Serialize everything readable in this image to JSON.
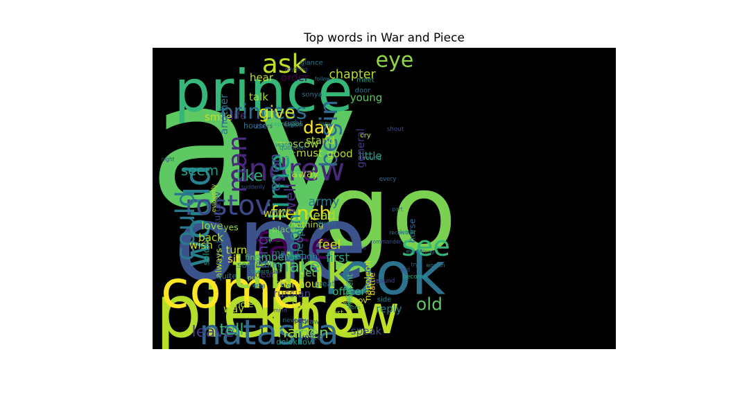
{
  "chart_data": {
    "type": "wordcloud",
    "title": "Top words in War and Piece",
    "background": "#000000",
    "words": [
      {
        "text": "say",
        "size": 1.0,
        "color": "#5ec962"
      },
      {
        "text": "go",
        "size": 0.62,
        "color": "#7ad151"
      },
      {
        "text": "one",
        "size": 0.6,
        "color": "#3b528b"
      },
      {
        "text": "pierre",
        "size": 0.42,
        "color": "#b5de2b"
      },
      {
        "text": "look",
        "size": 0.34,
        "color": "#2c728e"
      },
      {
        "text": "prince",
        "size": 0.33,
        "color": "#35b779"
      },
      {
        "text": "know",
        "size": 0.31,
        "color": "#bddf26"
      },
      {
        "text": "come",
        "size": 0.3,
        "color": "#fde725"
      },
      {
        "text": "think",
        "size": 0.28,
        "color": "#a0da39"
      },
      {
        "text": "take",
        "size": 0.22,
        "color": "#2a788e"
      },
      {
        "text": "face",
        "size": 0.21,
        "color": "#440154"
      },
      {
        "text": "natasha",
        "size": 0.2,
        "color": "#31688e"
      },
      {
        "text": "would",
        "size": 0.2,
        "color": "#26828e"
      },
      {
        "text": "count",
        "size": 0.18,
        "color": "#21918c"
      },
      {
        "text": "andrew",
        "size": 0.18,
        "color": "#482878"
      },
      {
        "text": "time",
        "size": 0.17,
        "color": "#1fa187"
      },
      {
        "text": "rostov",
        "size": 0.16,
        "color": "#3e4989"
      },
      {
        "text": "see",
        "size": 0.16,
        "color": "#35b779"
      },
      {
        "text": "could",
        "size": 0.15,
        "color": "#2a788e"
      },
      {
        "text": "man",
        "size": 0.15,
        "color": "#482878"
      },
      {
        "text": "ask",
        "size": 0.15,
        "color": "#c2df23"
      },
      {
        "text": "begin",
        "size": 0.14,
        "color": "#31688e"
      },
      {
        "text": "princess",
        "size": 0.12,
        "color": "#2c728e"
      },
      {
        "text": "eye",
        "size": 0.12,
        "color": "#90d743"
      },
      {
        "text": "french",
        "size": 0.11,
        "color": "#dde318"
      },
      {
        "text": "make",
        "size": 0.1,
        "color": "#4ac16d"
      },
      {
        "text": "room",
        "size": 0.1,
        "color": "#26828e"
      },
      {
        "text": "old",
        "size": 0.1,
        "color": "#5ec962"
      },
      {
        "text": "day",
        "size": 0.1,
        "color": "#fde725"
      },
      {
        "text": "give",
        "size": 0.1,
        "color": "#d2e21b"
      },
      {
        "text": "leave",
        "size": 0.09,
        "color": "#443983"
      },
      {
        "text": "hand",
        "size": 0.09,
        "color": "#9fda3a"
      },
      {
        "text": "men",
        "size": 0.09,
        "color": "#7ad151"
      },
      {
        "text": "tell",
        "size": 0.09,
        "color": "#35b779"
      },
      {
        "text": "well",
        "size": 0.09,
        "color": "#472d7b"
      },
      {
        "text": "even",
        "size": 0.09,
        "color": "#3b528b"
      },
      {
        "text": "long",
        "size": 0.09,
        "color": "#433e85"
      },
      {
        "text": "like",
        "size": 0.09,
        "color": "#2ab07f"
      },
      {
        "text": "seem",
        "size": 0.08,
        "color": "#1f9e89"
      },
      {
        "text": "chapter",
        "size": 0.07,
        "color": "#b8de29"
      },
      {
        "text": "army",
        "size": 0.07,
        "color": "#287c8e"
      },
      {
        "text": "head",
        "size": 0.07,
        "color": "#addc30"
      },
      {
        "text": "feel",
        "size": 0.07,
        "color": "#dde318"
      },
      {
        "text": "first",
        "size": 0.07,
        "color": "#22a884"
      },
      {
        "text": "little",
        "size": 0.06,
        "color": "#1f9a8a"
      },
      {
        "text": "young",
        "size": 0.06,
        "color": "#5ec962"
      },
      {
        "text": "good",
        "size": 0.06,
        "color": "#b5de2b"
      },
      {
        "text": "general",
        "size": 0.06,
        "color": "#443a83"
      },
      {
        "text": "word",
        "size": 0.06,
        "color": "#d8e219"
      },
      {
        "text": "people",
        "size": 0.06,
        "color": "#2d708e"
      },
      {
        "text": "officer",
        "size": 0.06,
        "color": "#35b779"
      },
      {
        "text": "way",
        "size": 0.06,
        "color": "#bddf26"
      },
      {
        "text": "speak",
        "size": 0.06,
        "color": "#3b528b"
      },
      {
        "text": "reply",
        "size": 0.06,
        "color": "#26828e"
      },
      {
        "text": "still",
        "size": 0.06,
        "color": "#9bd93c"
      },
      {
        "text": "without",
        "size": 0.06,
        "color": "#dde318"
      },
      {
        "text": "russian",
        "size": 0.06,
        "color": "#3e4a89"
      },
      {
        "text": "emperor",
        "size": 0.06,
        "color": "#35b779"
      },
      {
        "text": "understand",
        "size": 0.06,
        "color": "#482071"
      },
      {
        "text": "nicholas",
        "size": 0.06,
        "color": "#2e6e8e"
      },
      {
        "text": "turn",
        "size": 0.06,
        "color": "#c8e020"
      },
      {
        "text": "sit",
        "size": 0.06,
        "color": "#fde725"
      },
      {
        "text": "love",
        "size": 0.06,
        "color": "#95d840"
      },
      {
        "text": "back",
        "size": 0.06,
        "color": "#b8de29"
      },
      {
        "text": "wish",
        "size": 0.06,
        "color": "#d5e21a"
      },
      {
        "text": "yes",
        "size": 0.05,
        "color": "#95d840"
      },
      {
        "text": "smile",
        "size": 0.06,
        "color": "#c2df23"
      },
      {
        "text": "away",
        "size": 0.06,
        "color": "#b5de2b"
      },
      {
        "text": "moscow",
        "size": 0.06,
        "color": "#9bd93c"
      },
      {
        "text": "felt",
        "size": 0.06,
        "color": "#5ec962"
      },
      {
        "text": "another",
        "size": 0.06,
        "color": "#2c728e"
      },
      {
        "text": "life",
        "size": 0.06,
        "color": "#482878"
      },
      {
        "text": "talk",
        "size": 0.06,
        "color": "#a5db36"
      },
      {
        "text": "hear",
        "size": 0.06,
        "color": "#bddf26"
      },
      {
        "text": "order",
        "size": 0.06,
        "color": "#440154"
      },
      {
        "text": "must",
        "size": 0.06,
        "color": "#b8de29"
      },
      {
        "text": "stand",
        "size": 0.06,
        "color": "#addc30"
      },
      {
        "text": "two",
        "size": 0.06,
        "color": "#2c728e"
      },
      {
        "text": "get",
        "size": 0.06,
        "color": "#5ec962"
      },
      {
        "text": "mary",
        "size": 0.05,
        "color": "#2a788e"
      },
      {
        "text": "though",
        "size": 0.05,
        "color": "#228c8d"
      },
      {
        "text": "nothing",
        "size": 0.05,
        "color": "#b5de2b"
      },
      {
        "text": "place",
        "size": 0.05,
        "color": "#7ad151"
      },
      {
        "text": "always",
        "size": 0.05,
        "color": "#c2df23"
      },
      {
        "text": "soldier",
        "size": 0.05,
        "color": "#1f9e89"
      },
      {
        "text": "something",
        "size": 0.05,
        "color": "#2a788e"
      },
      {
        "text": "dear",
        "size": 0.05,
        "color": "#472c7a"
      },
      {
        "text": "whole",
        "size": 0.05,
        "color": "#addc30"
      },
      {
        "text": "voice",
        "size": 0.05,
        "color": "#3b528b"
      },
      {
        "text": "kutuzov",
        "size": 0.05,
        "color": "#3e4989"
      },
      {
        "text": "napoleon",
        "size": 0.05,
        "color": "#dde318"
      },
      {
        "text": "horse",
        "size": 0.05,
        "color": "#31688e"
      },
      {
        "text": "dolokhov",
        "size": 0.045,
        "color": "#1fa187"
      },
      {
        "text": "denisov",
        "size": 0.045,
        "color": "#dde318"
      },
      {
        "text": "great",
        "size": 0.045,
        "color": "#2a788e"
      },
      {
        "text": "battle",
        "size": 0.045,
        "color": "#fde725"
      },
      {
        "text": "moment",
        "size": 0.045,
        "color": "#4ac16d"
      },
      {
        "text": "father",
        "size": 0.045,
        "color": "#35b779"
      },
      {
        "text": "quite",
        "size": 0.045,
        "color": "#2c728e"
      },
      {
        "text": "find",
        "size": 0.045,
        "color": "#5ec962"
      },
      {
        "text": "house",
        "size": 0.045,
        "color": "#2a788e"
      },
      {
        "text": "right",
        "size": 0.045,
        "color": "#3b528b"
      },
      {
        "text": "sonya",
        "size": 0.04,
        "color": "#2c728e"
      },
      {
        "text": "door",
        "size": 0.04,
        "color": "#2a788e"
      },
      {
        "text": "meet",
        "size": 0.04,
        "color": "#1f9e89"
      },
      {
        "text": "cry",
        "size": 0.04,
        "color": "#b8de29"
      },
      {
        "text": "others",
        "size": 0.035,
        "color": "#3e4989"
      },
      {
        "text": "expression",
        "size": 0.035,
        "color": "#35b779"
      },
      {
        "text": "glance",
        "size": 0.04,
        "color": "#2c728e"
      },
      {
        "text": "put",
        "size": 0.04,
        "color": "#9fda3a"
      },
      {
        "text": "bring",
        "size": 0.04,
        "color": "#c2df23"
      },
      {
        "text": "petya",
        "size": 0.035,
        "color": "#440154"
      },
      {
        "text": "draw",
        "size": 0.04,
        "color": "#2a788e"
      },
      {
        "text": "last",
        "size": 0.04,
        "color": "#b8de29"
      },
      {
        "text": "side",
        "size": 0.04,
        "color": "#26828e"
      },
      {
        "text": "sound",
        "size": 0.035,
        "color": "#3e4989"
      },
      {
        "text": "become",
        "size": 0.035,
        "color": "#22a884"
      },
      {
        "text": "every",
        "size": 0.035,
        "color": "#31688e"
      },
      {
        "text": "letter",
        "size": 0.035,
        "color": "#1f9e89"
      },
      {
        "text": "evidently",
        "size": 0.035,
        "color": "#b5de2b"
      },
      {
        "text": "never",
        "size": 0.035,
        "color": "#2c728e"
      },
      {
        "text": "call",
        "size": 0.035,
        "color": "#3b528b"
      },
      {
        "text": "fire",
        "size": 0.035,
        "color": "#2a788e"
      },
      {
        "text": "much",
        "size": 0.035,
        "color": "#35b779"
      },
      {
        "text": "want",
        "size": 0.035,
        "color": "#26828e"
      },
      {
        "text": "shout",
        "size": 0.035,
        "color": "#3e4989"
      },
      {
        "text": "question",
        "size": 0.035,
        "color": "#2c728e"
      },
      {
        "text": "round",
        "size": 0.035,
        "color": "#1f9e89"
      },
      {
        "text": "enter",
        "size": 0.035,
        "color": "#3b528b"
      },
      {
        "text": "action",
        "size": 0.03,
        "color": "#31688e"
      },
      {
        "text": "listen",
        "size": 0.03,
        "color": "#1f9e89"
      },
      {
        "text": "anything",
        "size": 0.03,
        "color": "#3e4989"
      },
      {
        "text": "follow",
        "size": 0.03,
        "color": "#2c728e"
      },
      {
        "text": "part",
        "size": 0.03,
        "color": "#31688e"
      },
      {
        "text": "suddenly",
        "size": 0.03,
        "color": "#3b528b"
      },
      {
        "text": "already",
        "size": 0.03,
        "color": "#2a788e"
      },
      {
        "text": "receive",
        "size": 0.03,
        "color": "#31688e"
      },
      {
        "text": "happen",
        "size": 0.03,
        "color": "#2c728e"
      },
      {
        "text": "commander",
        "size": 0.03,
        "color": "#3b528b"
      },
      {
        "text": "return",
        "size": 0.03,
        "color": "#2a788e"
      },
      {
        "text": "toward",
        "size": 0.03,
        "color": "#1f9e89"
      },
      {
        "text": "behind",
        "size": 0.03,
        "color": "#3e4989"
      },
      {
        "text": "everything",
        "size": 0.03,
        "color": "#2c728e"
      },
      {
        "text": "try",
        "size": 0.03,
        "color": "#31688e"
      },
      {
        "text": "god",
        "size": 0.03,
        "color": "#3b528b"
      },
      {
        "text": "woman",
        "size": 0.03,
        "color": "#2a788e"
      },
      {
        "text": "boris",
        "size": 0.03,
        "color": "#1f9e89"
      },
      {
        "text": "mind",
        "size": 0.03,
        "color": "#3e4989"
      },
      {
        "text": "write",
        "size": 0.03,
        "color": "#2c728e"
      },
      {
        "text": "stop",
        "size": 0.03,
        "color": "#31688e"
      },
      {
        "text": "night",
        "size": 0.03,
        "color": "#3b528b"
      }
    ]
  }
}
